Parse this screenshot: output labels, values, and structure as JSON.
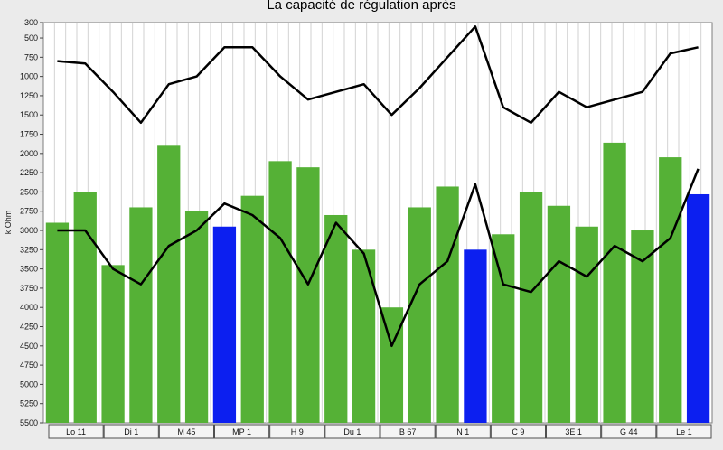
{
  "chart_data": {
    "type": "bar",
    "title": "La capacité de régulation après",
    "xlabel": "",
    "ylabel": "k Ohm",
    "y_axis_inverted": true,
    "ylim": [
      300,
      5500
    ],
    "yticks": [
      300,
      500,
      750,
      1000,
      1250,
      1500,
      1750,
      2000,
      2250,
      2500,
      2750,
      3000,
      3250,
      3500,
      3750,
      4000,
      4250,
      4500,
      4750,
      5000,
      5250,
      5500
    ],
    "grid": "vertical",
    "groups": [
      "Lo 11",
      "Di 1",
      "M 45",
      "MP 1",
      "H 9",
      "Du 1",
      "B 67",
      "N 1",
      "C 9",
      "3E 1",
      "G 44",
      "Le 1"
    ],
    "bars": [
      {
        "value": 2900,
        "color": "#55b136"
      },
      {
        "value": 2500,
        "color": "#55b136"
      },
      {
        "value": 3450,
        "color": "#55b136"
      },
      {
        "value": 2700,
        "color": "#55b136"
      },
      {
        "value": 1900,
        "color": "#55b136"
      },
      {
        "value": 2750,
        "color": "#55b136"
      },
      {
        "value": 2950,
        "color": "#0c1ff0"
      },
      {
        "value": 2550,
        "color": "#55b136"
      },
      {
        "value": 2100,
        "color": "#55b136"
      },
      {
        "value": 2180,
        "color": "#55b136"
      },
      {
        "value": 2800,
        "color": "#55b136"
      },
      {
        "value": 3250,
        "color": "#55b136"
      },
      {
        "value": 4000,
        "color": "#55b136"
      },
      {
        "value": 2700,
        "color": "#55b136"
      },
      {
        "value": 2430,
        "color": "#55b136"
      },
      {
        "value": 3250,
        "color": "#0c1ff0"
      },
      {
        "value": 3050,
        "color": "#55b136"
      },
      {
        "value": 2500,
        "color": "#55b136"
      },
      {
        "value": 2680,
        "color": "#55b136"
      },
      {
        "value": 2950,
        "color": "#55b136"
      },
      {
        "value": 1860,
        "color": "#55b136"
      },
      {
        "value": 3000,
        "color": "#55b136"
      },
      {
        "value": 2050,
        "color": "#55b136"
      },
      {
        "value": 2530,
        "color": "#0c1ff0"
      }
    ],
    "lines": [
      {
        "color": "#000000",
        "values": [
          800,
          830,
          1200,
          1600,
          1100,
          1000,
          620,
          620,
          1000,
          1300,
          1200,
          1100,
          1500,
          1150,
          750,
          350,
          1400,
          1600,
          1200,
          1400,
          1300,
          1200,
          700,
          620
        ]
      },
      {
        "color": "#000000",
        "values": [
          3000,
          3000,
          3500,
          3700,
          3200,
          3000,
          2650,
          2800,
          3100,
          3700,
          2900,
          3300,
          4500,
          3700,
          3400,
          2400,
          3700,
          3800,
          3400,
          3600,
          3200,
          3400,
          3100,
          2200
        ]
      }
    ]
  }
}
